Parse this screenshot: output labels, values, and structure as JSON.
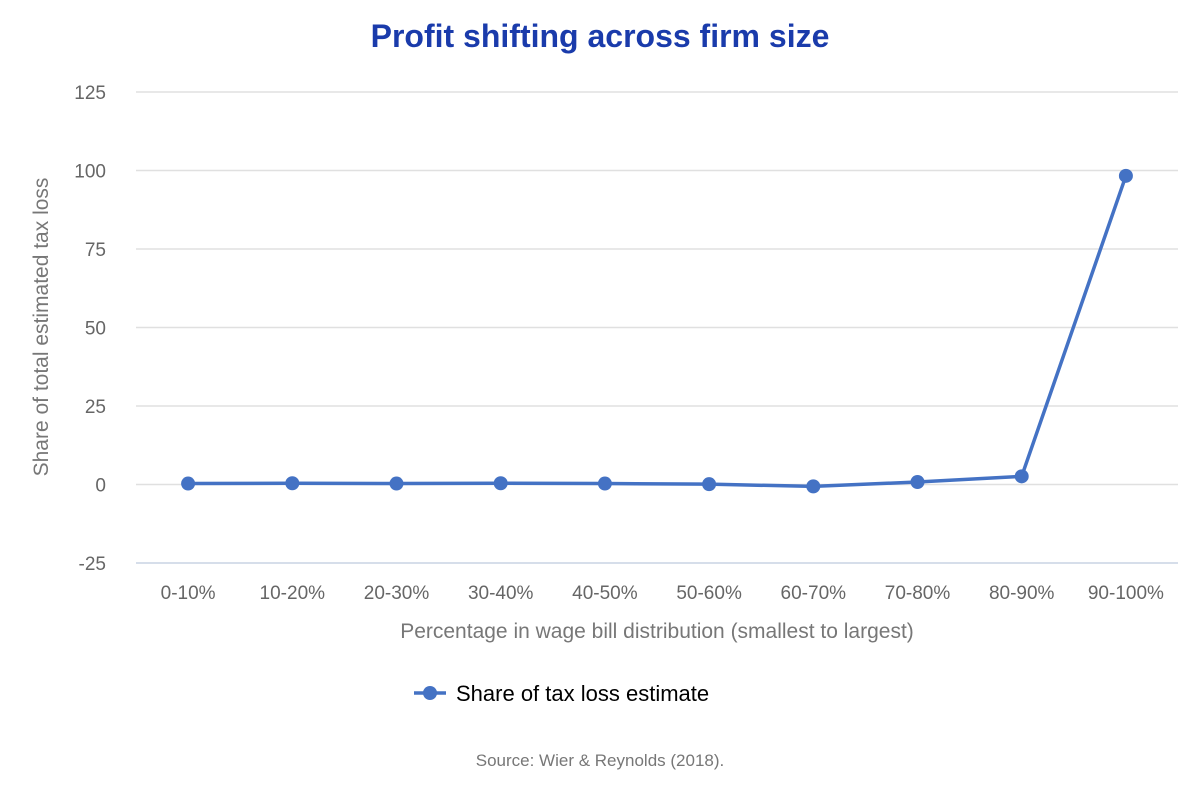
{
  "chart_data": {
    "type": "line",
    "title": "Profit shifting across firm size",
    "xlabel": "Percentage in wage bill distribution (smallest to largest)",
    "ylabel": "Share of total estimated tax loss",
    "categories": [
      "0-10%",
      "10-20%",
      "20-30%",
      "30-40%",
      "40-50%",
      "50-60%",
      "60-70%",
      "70-80%",
      "80-90%",
      "90-100%"
    ],
    "series": [
      {
        "name": "Share of tax loss estimate",
        "color": "#4472c4",
        "values": [
          0.3,
          0.4,
          0.3,
          0.4,
          0.3,
          0.1,
          -0.6,
          0.8,
          2.6,
          98.3
        ]
      }
    ],
    "ylim": [
      -25,
      125
    ],
    "yticks": [
      125,
      100,
      75,
      50,
      25,
      0,
      -25
    ],
    "grid": true,
    "legend": "bottom-center",
    "source": "Source: Wier & Reynolds (2018)."
  }
}
